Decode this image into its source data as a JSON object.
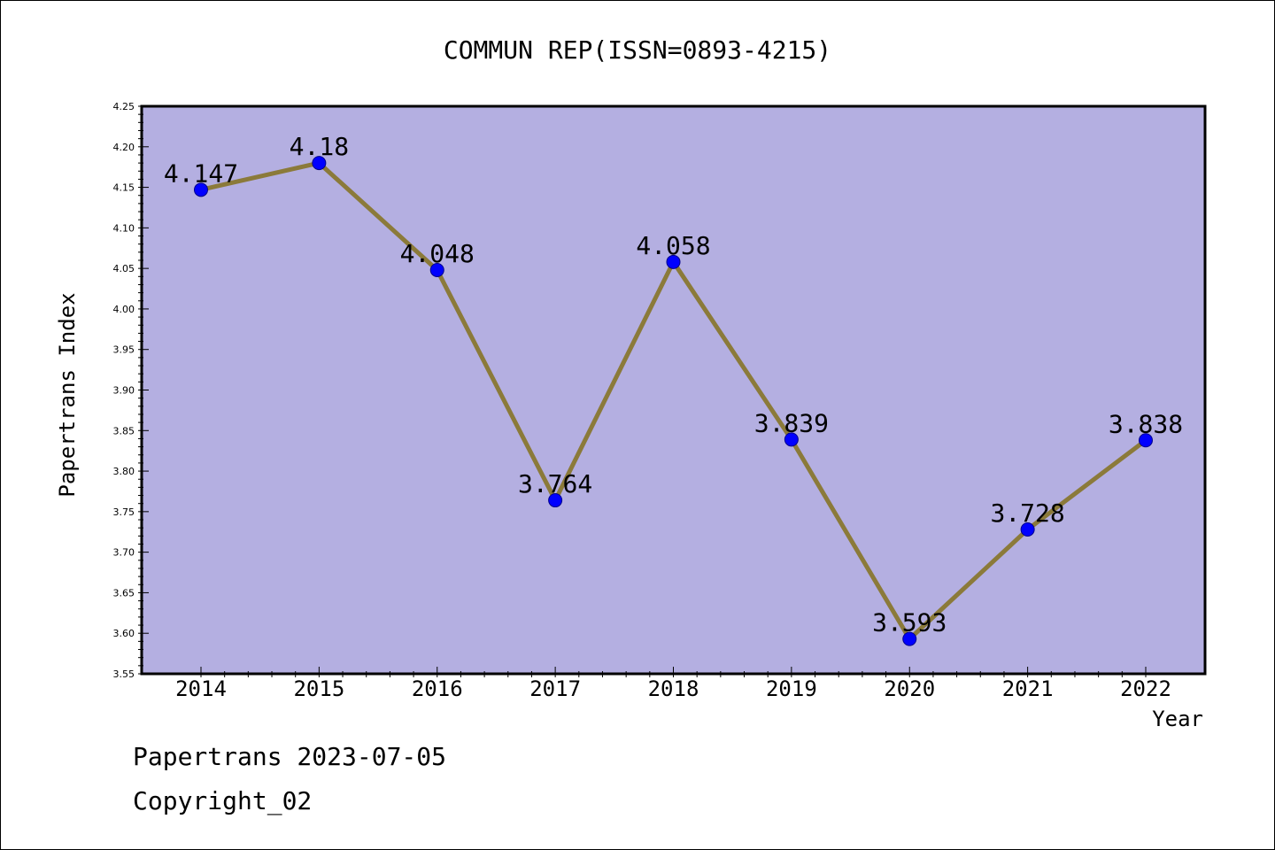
{
  "chart_data": {
    "type": "line",
    "title": "COMMUN REP(ISSN=0893-4215)",
    "xlabel": "Year",
    "ylabel": "Papertrans Index",
    "categories": [
      "2014",
      "2015",
      "2016",
      "2017",
      "2018",
      "2019",
      "2020",
      "2021",
      "2022"
    ],
    "series": [
      {
        "values": [
          4.147,
          4.18,
          4.048,
          3.764,
          4.058,
          3.839,
          3.593,
          3.728,
          3.838
        ],
        "labels": [
          "4.147",
          "4.18",
          "4.048",
          "3.764",
          "4.058",
          "3.839",
          "3.593",
          "3.728",
          "3.838"
        ]
      }
    ],
    "ylim": [
      3.55,
      4.25
    ],
    "yticks": [
      "3.55",
      "3.60",
      "3.65",
      "3.70",
      "3.75",
      "3.80",
      "3.85",
      "3.90",
      "3.95",
      "4.00",
      "4.05",
      "4.10",
      "4.15",
      "4.20",
      "4.25"
    ],
    "grid": false,
    "legend": "none"
  },
  "footer": {
    "line1": "Papertrans 2023-07-05",
    "line2": "Copyright_02"
  },
  "colors": {
    "plot_background": "#b4afe1",
    "line": "#8b7a3a",
    "marker": "#0000ff",
    "marker_edge": "#00008b",
    "axis": "#000000"
  }
}
